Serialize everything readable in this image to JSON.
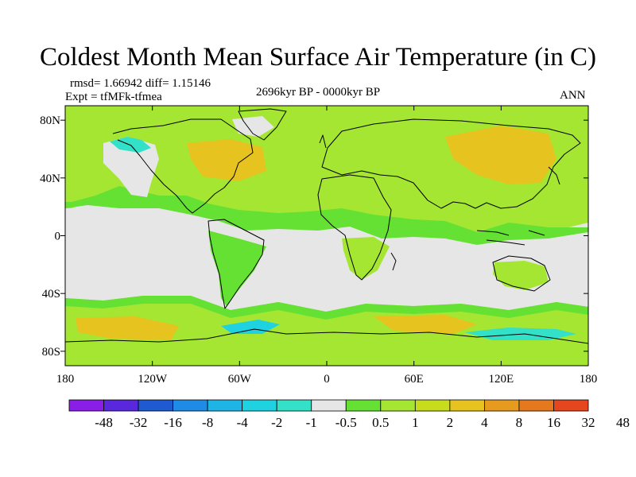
{
  "title": "Coldest Month Mean Surface Air Temperature (in C)",
  "stats": "rmsd= 1.66942 diff= 1.15146",
  "experiment": "Expt = tfMFk-tfmea",
  "period": "2696kyr BP - 0000kyr BP",
  "season": "ANN",
  "lat_ticks": [
    {
      "value": 80,
      "label": "80N"
    },
    {
      "value": 40,
      "label": "40N"
    },
    {
      "value": 0,
      "label": "0"
    },
    {
      "value": -40,
      "label": "40S"
    },
    {
      "value": -80,
      "label": "80S"
    }
  ],
  "lon_ticks": [
    {
      "value": -180,
      "label": "180"
    },
    {
      "value": -120,
      "label": "120W"
    },
    {
      "value": -60,
      "label": "60W"
    },
    {
      "value": 0,
      "label": "0"
    },
    {
      "value": 60,
      "label": "60E"
    },
    {
      "value": 120,
      "label": "120E"
    },
    {
      "value": 180,
      "label": "180"
    }
  ],
  "colorbar": {
    "colors": [
      "#8a1ee6",
      "#5a28dc",
      "#1e5ad2",
      "#1e8ce6",
      "#1eb4e6",
      "#1ed2e1",
      "#32e1c8",
      "#e6e6e6",
      "#64e132",
      "#a5e632",
      "#c8dc1e",
      "#e6c31e",
      "#e69b1e",
      "#e6781e",
      "#e6461e"
    ],
    "labels": [
      "-48",
      "-32",
      "-16",
      "-8",
      "-4",
      "-2",
      "-1",
      "-0.5",
      "0.5",
      "1",
      "2",
      "4",
      "8",
      "16",
      "32",
      "48"
    ]
  },
  "field_colors": {
    "neutral": "#e6e6e6",
    "light_green": "#64e132",
    "green": "#a5e632",
    "yellow_green": "#c8dc1e",
    "gold": "#e6c31e",
    "cyan": "#32e1c8",
    "deep_cyan": "#1ed2e1"
  }
}
